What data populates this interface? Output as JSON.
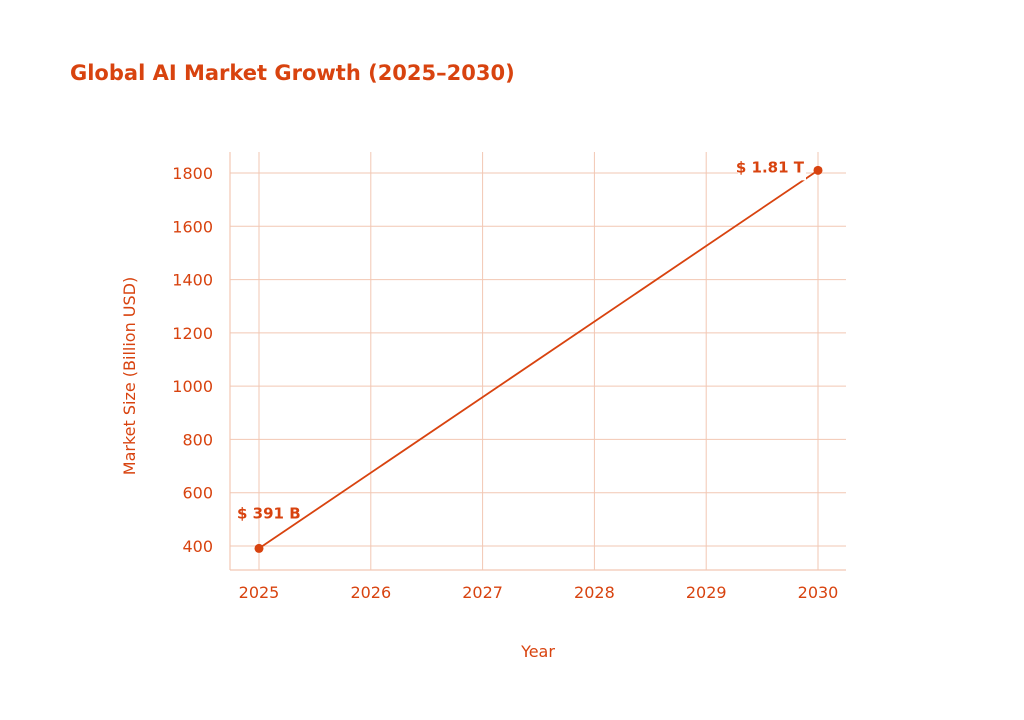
{
  "chart_data": {
    "type": "line",
    "title": "Global AI Market Growth (2025–2030)",
    "xlabel": "Year",
    "ylabel": "Market Size (Billion USD)",
    "categories": [
      "2025",
      "2026",
      "2027",
      "2028",
      "2029",
      "2030"
    ],
    "x": [
      2025,
      2030
    ],
    "values": [
      391,
      1810
    ],
    "data_labels": [
      "$ 391 B",
      "$ 1.81 T"
    ],
    "yticks": [
      400,
      600,
      800,
      1000,
      1200,
      1400,
      1600,
      1800
    ],
    "ylim": [
      320,
      1880
    ],
    "xlim": [
      2024.75,
      2030.25
    ],
    "grid": true,
    "colors": {
      "accent": "#D8430F",
      "grid": "#F2C7B3"
    }
  }
}
